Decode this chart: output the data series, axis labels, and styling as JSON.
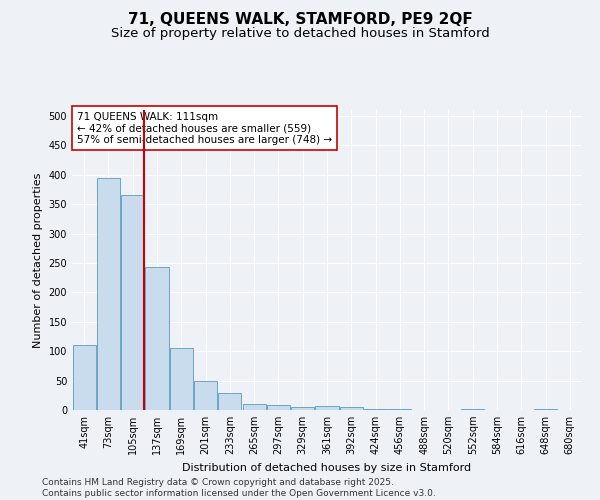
{
  "title": "71, QUEENS WALK, STAMFORD, PE9 2QF",
  "subtitle": "Size of property relative to detached houses in Stamford",
  "xlabel": "Distribution of detached houses by size in Stamford",
  "ylabel": "Number of detached properties",
  "categories": [
    "41sqm",
    "73sqm",
    "105sqm",
    "137sqm",
    "169sqm",
    "201sqm",
    "233sqm",
    "265sqm",
    "297sqm",
    "329sqm",
    "361sqm",
    "392sqm",
    "424sqm",
    "456sqm",
    "488sqm",
    "520sqm",
    "552sqm",
    "584sqm",
    "616sqm",
    "648sqm",
    "680sqm"
  ],
  "values": [
    110,
    395,
    365,
    243,
    105,
    50,
    29,
    10,
    8,
    5,
    7,
    5,
    2,
    1,
    0,
    0,
    1,
    0,
    0,
    1,
    0
  ],
  "bar_color": "#c8dced",
  "bar_edge_color": "#5b9abf",
  "vline_x": 2.45,
  "vline_color": "#cc0000",
  "annotation_text": "71 QUEENS WALK: 111sqm\n← 42% of detached houses are smaller (559)\n57% of semi-detached houses are larger (748) →",
  "annotation_box_color": "#ffffff",
  "annotation_box_edge": "#cc0000",
  "ylim": [
    0,
    510
  ],
  "yticks": [
    0,
    50,
    100,
    150,
    200,
    250,
    300,
    350,
    400,
    450,
    500
  ],
  "background_color": "#eef2f7",
  "grid_color": "#ffffff",
  "footer": "Contains HM Land Registry data © Crown copyright and database right 2025.\nContains public sector information licensed under the Open Government Licence v3.0.",
  "title_fontsize": 11,
  "subtitle_fontsize": 9.5,
  "label_fontsize": 8,
  "tick_fontsize": 7,
  "annotation_fontsize": 7.5,
  "footer_fontsize": 6.5
}
